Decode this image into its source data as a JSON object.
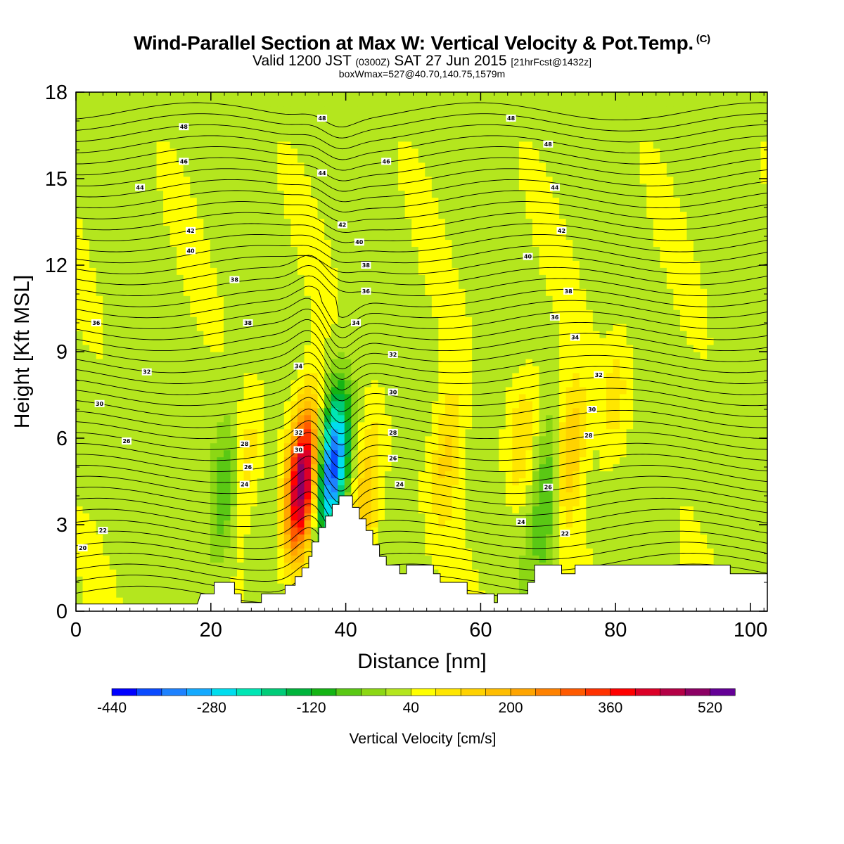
{
  "title": {
    "line1": "Wind-Parallel Section at Max W: Vertical Velocity & Pot.Temp.",
    "copyright": "(C)",
    "line2_a": "Valid 1200 JST",
    "line2_b": "(0300Z)",
    "line2_c": "SAT 27 Jun 2015",
    "line2_d": "[21hrFcst@1432z]",
    "line3": "boxWmax=527@40.70,140.75,1579m"
  },
  "chart_data": {
    "type": "heatmap",
    "xlabel": "Distance [nm]",
    "ylabel": "Height [Kft MSL]",
    "xlim": [
      0,
      102.5
    ],
    "ylim": [
      0,
      18
    ],
    "x_ticks": [
      "0",
      "20",
      "40",
      "60",
      "80",
      "100"
    ],
    "x_tick_values": [
      0,
      20,
      40,
      60,
      80,
      100
    ],
    "y_ticks": [
      "0",
      "3",
      "6",
      "9",
      "12",
      "15",
      "18"
    ],
    "y_tick_values": [
      0,
      3,
      6,
      9,
      12,
      15,
      18
    ],
    "colorbar": {
      "title": "Vertical Velocity [cm/s]",
      "labels": [
        "-440",
        "-280",
        "-120",
        "40",
        "200",
        "360",
        "520"
      ],
      "label_values": [
        -440,
        -280,
        -120,
        40,
        200,
        360,
        520
      ],
      "bounds": [
        -440,
        -400,
        -360,
        -320,
        -280,
        -240,
        -200,
        -160,
        -120,
        -80,
        -40,
        0,
        40,
        80,
        120,
        160,
        200,
        240,
        280,
        320,
        360,
        400,
        440,
        480,
        520,
        560
      ],
      "colors": [
        "#0000ff",
        "#0a4bff",
        "#1e82ff",
        "#14aaff",
        "#00ddee",
        "#00e6b4",
        "#00cc78",
        "#00b43c",
        "#14b414",
        "#5ac814",
        "#8cd714",
        "#b4e61e",
        "#ffff00",
        "#ffe600",
        "#ffd200",
        "#ffbe00",
        "#ffa500",
        "#ff8200",
        "#ff5a00",
        "#ff3200",
        "#ff0000",
        "#dc0028",
        "#b40046",
        "#8c0064",
        "#640096"
      ]
    },
    "terrain": [
      [
        0,
        0.25
      ],
      [
        18,
        0.25
      ],
      [
        18.5,
        0.6
      ],
      [
        20.5,
        0.6
      ],
      [
        20.5,
        1.0
      ],
      [
        23.5,
        1.0
      ],
      [
        23.5,
        0.6
      ],
      [
        24.5,
        0.6
      ],
      [
        24.5,
        0.3
      ],
      [
        27.5,
        0.3
      ],
      [
        27.5,
        0.6
      ],
      [
        31,
        0.6
      ],
      [
        31,
        0.9
      ],
      [
        32.5,
        0.9
      ],
      [
        32.5,
        1.2
      ],
      [
        33.5,
        1.2
      ],
      [
        33.5,
        1.5
      ],
      [
        34.5,
        1.5
      ],
      [
        34.5,
        1.9
      ],
      [
        35,
        1.9
      ],
      [
        35,
        2.4
      ],
      [
        36,
        2.4
      ],
      [
        36,
        2.9
      ],
      [
        37,
        2.9
      ],
      [
        37,
        3.3
      ],
      [
        38,
        3.3
      ],
      [
        38,
        3.7
      ],
      [
        39,
        3.7
      ],
      [
        39,
        4.0
      ],
      [
        41,
        4.0
      ],
      [
        41,
        3.6
      ],
      [
        42,
        3.6
      ],
      [
        42,
        3.2
      ],
      [
        43,
        3.2
      ],
      [
        43,
        2.8
      ],
      [
        44,
        2.8
      ],
      [
        44,
        2.3
      ],
      [
        45,
        2.3
      ],
      [
        45,
        1.9
      ],
      [
        46,
        1.9
      ],
      [
        46,
        1.6
      ],
      [
        48,
        1.6
      ],
      [
        48,
        1.3
      ],
      [
        49,
        1.3
      ],
      [
        49,
        1.6
      ],
      [
        53,
        1.6
      ],
      [
        53,
        1.3
      ],
      [
        54,
        1.3
      ],
      [
        54,
        1.0
      ],
      [
        58,
        1.0
      ],
      [
        58,
        0.6
      ],
      [
        62,
        0.6
      ],
      [
        62,
        0.3
      ],
      [
        62.5,
        0.3
      ],
      [
        62.5,
        0.6
      ],
      [
        67,
        0.6
      ],
      [
        67,
        1.0
      ],
      [
        68,
        1.0
      ],
      [
        68,
        1.6
      ],
      [
        72,
        1.6
      ],
      [
        72,
        1.3
      ],
      [
        74,
        1.3
      ],
      [
        74,
        1.6
      ],
      [
        97,
        1.6
      ],
      [
        97,
        1.3
      ],
      [
        102.5,
        1.3
      ]
    ],
    "updrafts": [
      {
        "x": 33.5,
        "z": 4.5,
        "w": 480
      },
      {
        "x": 43,
        "z": 4.0,
        "w": 140
      },
      {
        "x": 55,
        "z": 5.5,
        "w": 100
      },
      {
        "x": 66,
        "z": 6.0,
        "w": 90
      },
      {
        "x": 73,
        "z": 5.5,
        "w": 150
      },
      {
        "x": 25,
        "z": 5.0,
        "w": 90
      },
      {
        "x": 80,
        "z": 7.5,
        "w": 70
      }
    ],
    "downdrafts": [
      {
        "x": 38,
        "z": 5.0,
        "w": -420
      },
      {
        "x": 70,
        "z": 4.0,
        "w": -140
      },
      {
        "x": 22,
        "z": 4.0,
        "w": -120
      }
    ],
    "theta_levels": [
      20,
      22,
      24,
      26,
      28,
      30,
      32,
      34,
      36,
      38,
      40,
      42,
      44,
      46,
      48
    ],
    "contour_labels": [
      {
        "text": "20",
        "x": 1,
        "z": 2.2
      },
      {
        "text": "22",
        "x": 4,
        "z": 2.8
      },
      {
        "text": "24",
        "x": 25,
        "z": 4.4
      },
      {
        "text": "26",
        "x": 25.5,
        "z": 5.0
      },
      {
        "text": "28",
        "x": 25,
        "z": 5.8
      },
      {
        "text": "26",
        "x": 7.5,
        "z": 5.9
      },
      {
        "text": "30",
        "x": 3.5,
        "z": 7.2
      },
      {
        "text": "32",
        "x": 10.5,
        "z": 8.3
      },
      {
        "text": "36",
        "x": 3,
        "z": 10.0
      },
      {
        "text": "38",
        "x": 23.5,
        "z": 11.5
      },
      {
        "text": "38",
        "x": 25.5,
        "z": 10.0
      },
      {
        "text": "40",
        "x": 17,
        "z": 12.5
      },
      {
        "text": "42",
        "x": 17,
        "z": 13.2
      },
      {
        "text": "44",
        "x": 9.5,
        "z": 14.7
      },
      {
        "text": "46",
        "x": 16,
        "z": 15.6
      },
      {
        "text": "48",
        "x": 16,
        "z": 16.8
      },
      {
        "text": "48",
        "x": 36.5,
        "z": 17.1
      },
      {
        "text": "44",
        "x": 36.5,
        "z": 15.2
      },
      {
        "text": "42",
        "x": 39.5,
        "z": 13.4
      },
      {
        "text": "40",
        "x": 42,
        "z": 12.8
      },
      {
        "text": "38",
        "x": 43,
        "z": 12.0
      },
      {
        "text": "36",
        "x": 43,
        "z": 11.1
      },
      {
        "text": "34",
        "x": 41.5,
        "z": 10.0
      },
      {
        "text": "34",
        "x": 33,
        "z": 8.5
      },
      {
        "text": "32",
        "x": 33,
        "z": 6.2
      },
      {
        "text": "30",
        "x": 33,
        "z": 5.6
      },
      {
        "text": "32",
        "x": 47,
        "z": 8.9
      },
      {
        "text": "30",
        "x": 47,
        "z": 7.6
      },
      {
        "text": "28",
        "x": 47,
        "z": 6.2
      },
      {
        "text": "26",
        "x": 47,
        "z": 5.3
      },
      {
        "text": "24",
        "x": 48,
        "z": 4.4
      },
      {
        "text": "46",
        "x": 46,
        "z": 15.6
      },
      {
        "text": "48",
        "x": 64.5,
        "z": 17.1
      },
      {
        "text": "48",
        "x": 70,
        "z": 16.2
      },
      {
        "text": "44",
        "x": 71,
        "z": 14.7
      },
      {
        "text": "42",
        "x": 72,
        "z": 13.2
      },
      {
        "text": "40",
        "x": 67,
        "z": 12.3
      },
      {
        "text": "38",
        "x": 73,
        "z": 11.1
      },
      {
        "text": "36",
        "x": 71,
        "z": 10.2
      },
      {
        "text": "34",
        "x": 74,
        "z": 9.5
      },
      {
        "text": "32",
        "x": 77.5,
        "z": 8.2
      },
      {
        "text": "30",
        "x": 76.5,
        "z": 7.0
      },
      {
        "text": "28",
        "x": 76,
        "z": 6.1
      },
      {
        "text": "26",
        "x": 70,
        "z": 4.3
      },
      {
        "text": "24",
        "x": 66,
        "z": 3.1
      },
      {
        "text": "22",
        "x": 72.5,
        "z": 2.7
      }
    ]
  }
}
